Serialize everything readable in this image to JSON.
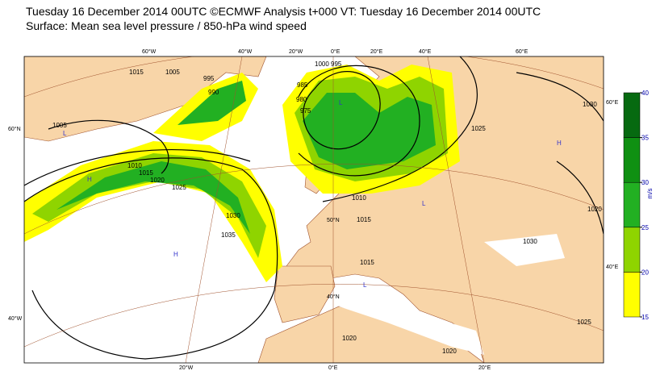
{
  "header": {
    "title": "Tuesday 16 December 2014 00UTC ©ECMWF Analysis t+000 VT: Tuesday 16 December 2014 00UTC",
    "subtitle": "Surface: Mean sea level pressure / 850-hPa wind speed"
  },
  "colorbar": {
    "levels": [
      15,
      20,
      25,
      30,
      35,
      40
    ],
    "colors": [
      "#ffff00",
      "#8fd400",
      "#22b022",
      "#0f9012",
      "#066a10"
    ],
    "unit": "m/s"
  },
  "graticule": {
    "top": [
      "60°W",
      "40°W",
      "20°W",
      "0°E",
      "20°E",
      "40°E",
      "60°E"
    ],
    "left": [
      "60°N",
      "40°W"
    ],
    "bottom": [
      "20°W",
      "0°E",
      "20°E"
    ],
    "right": [
      "60°E",
      "40°E"
    ],
    "inner": [
      "50°N",
      "40°N"
    ]
  },
  "isobar_labels": [
    "1005",
    "1010",
    "1015",
    "1020",
    "1025",
    "1030",
    "1035",
    "990",
    "995",
    "1015",
    "1005",
    "985",
    "980",
    "975",
    "1000",
    "995",
    "1010",
    "1015",
    "1015",
    "1020",
    "1020",
    "1030",
    "1025",
    "1020",
    "1030",
    "1025"
  ],
  "pressure_centres": [
    "H",
    "L",
    "L",
    "H",
    "L",
    "H",
    "L"
  ]
}
